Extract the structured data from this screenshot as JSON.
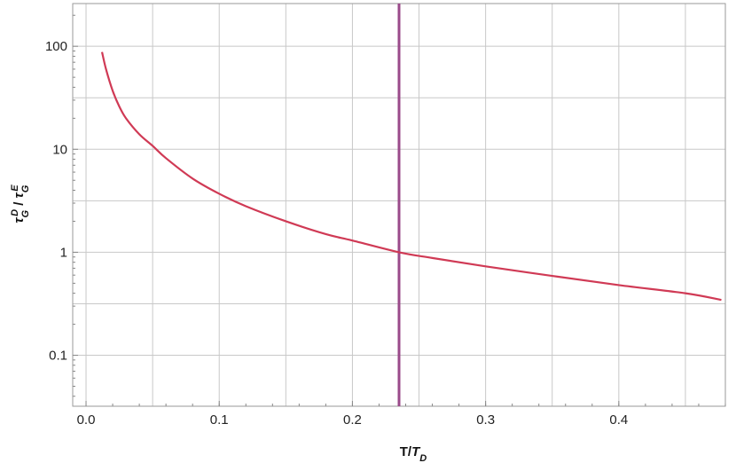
{
  "chart_data": {
    "type": "line",
    "xlabel": "T/T_D",
    "ylabel": "τ_G^D / τ_G^E",
    "x_scale": "linear",
    "y_scale": "log",
    "xlim": [
      -0.01,
      0.48
    ],
    "ylim": [
      0.032,
      260
    ],
    "x_ticks": [
      0.0,
      0.1,
      0.2,
      0.3,
      0.4
    ],
    "x_tick_labels": [
      "0.0",
      "0.1",
      "0.2",
      "0.3",
      "0.4"
    ],
    "y_ticks": [
      0.1,
      1,
      10,
      100
    ],
    "y_tick_labels": [
      "0.1",
      "1",
      "10",
      "100"
    ],
    "grid": true,
    "series": [
      {
        "color": "#d03a55",
        "x": [
          0.012,
          0.015,
          0.02,
          0.025,
          0.03,
          0.04,
          0.05,
          0.06,
          0.08,
          0.1,
          0.12,
          0.15,
          0.18,
          0.2,
          0.235,
          0.26,
          0.3,
          0.35,
          0.4,
          0.45,
          0.477
        ],
        "y": [
          88,
          60,
          37,
          26,
          20,
          14,
          10.8,
          8.2,
          5.2,
          3.7,
          2.8,
          2.0,
          1.5,
          1.3,
          1.0,
          0.88,
          0.73,
          0.59,
          0.48,
          0.4,
          0.345
        ]
      }
    ],
    "vertical_lines": [
      {
        "x": 0.235,
        "color": "#9a4a8a"
      }
    ]
  }
}
